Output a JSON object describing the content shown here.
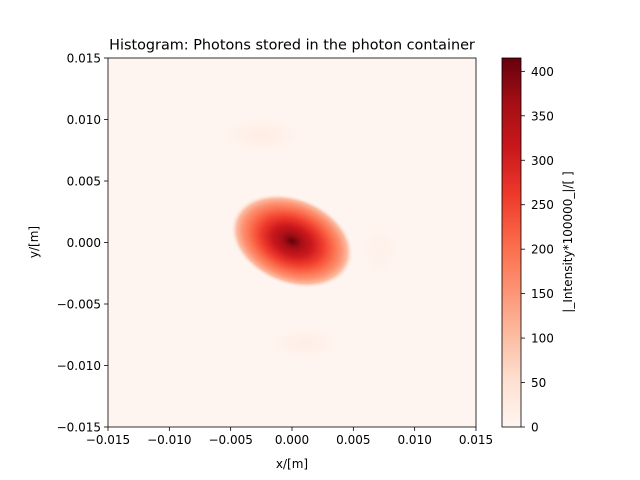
{
  "chart_data": {
    "type": "heatmap",
    "title": "Histogram: Photons stored in the photon container",
    "xlabel": "x/[m]",
    "ylabel": "y/[m]",
    "xlim": [
      -0.015,
      0.015
    ],
    "ylim": [
      -0.015,
      0.015
    ],
    "xticks": [
      "−0.015",
      "−0.010",
      "−0.005",
      "0.000",
      "0.005",
      "0.010",
      "0.015"
    ],
    "yticks": [
      "−0.015",
      "−0.010",
      "−0.005",
      "0.000",
      "0.005",
      "0.010",
      "0.015"
    ],
    "xtick_values": [
      -0.015,
      -0.01,
      -0.005,
      0,
      0.005,
      0.01,
      0.015
    ],
    "ytick_values": [
      -0.015,
      -0.01,
      -0.005,
      0,
      0.005,
      0.01,
      0.015
    ],
    "colormap": "Reds",
    "colorbar": {
      "label": "|_Intensity*100000_|/[ ]",
      "range": [
        0,
        415
      ],
      "ticks": [
        "0",
        "50",
        "100",
        "150",
        "200",
        "250",
        "300",
        "350",
        "400"
      ],
      "tick_values": [
        0,
        50,
        100,
        150,
        200,
        250,
        300,
        350,
        400
      ]
    },
    "peak": {
      "x": 0.0,
      "y": 0.0,
      "value": 415
    },
    "grid": false
  }
}
